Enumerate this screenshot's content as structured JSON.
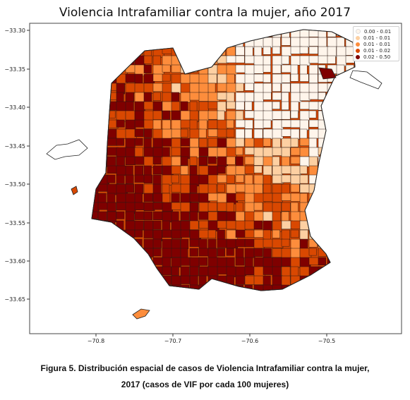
{
  "title": "Violencia Intrafamiliar contra la mujer, año 2017",
  "axes": {
    "x_ticks": [
      "−70.8",
      "−70.7",
      "−70.6",
      "−70.5"
    ],
    "y_ticks": [
      "−33.30",
      "−33.35",
      "−33.40",
      "−33.45",
      "−33.50",
      "−33.55",
      "−33.60",
      "−33.65"
    ]
  },
  "legend": {
    "items": [
      {
        "label": "0.00 - 0.01",
        "color": "#fff5eb"
      },
      {
        "label": "0.01 - 0.01",
        "color": "#fdd0a2"
      },
      {
        "label": "0.01 - 0.01",
        "color": "#fd8d3c"
      },
      {
        "label": "0.01 - 0.02",
        "color": "#d94801"
      },
      {
        "label": "0.02 - 0.50",
        "color": "#7f0000"
      }
    ]
  },
  "caption": {
    "line1": "Figura 5. Distribución espacial de casos de Violencia Intrafamiliar contra la mujer,",
    "line2": "2017 (casos de VIF por cada 100 mujeres)"
  }
}
